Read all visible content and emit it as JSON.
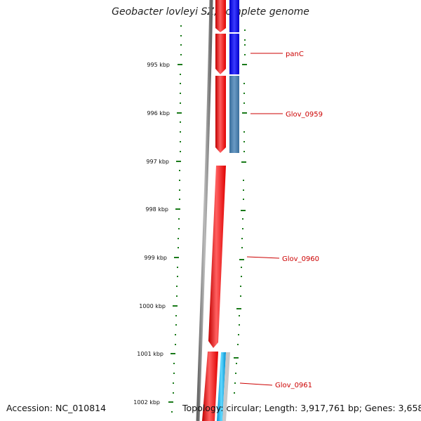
{
  "title": "Geobacter lovleyi SZ, complete genome",
  "footer": {
    "accession": "Accession: NC_010814",
    "summary": "Topology: circular; Length: 3,917,761 bp; Genes: 3,658"
  },
  "ticks": [
    "995 kbp",
    "996 kbp",
    "997 kbp",
    "998 kbp",
    "999 kbp",
    "1000 kbp",
    "1001 kbp",
    "1002 kbp"
  ],
  "genes": [
    "panC",
    "Glov_0959",
    "Glov_0960",
    "Glov_0961"
  ],
  "colors": {
    "gene_red": "#ff0000",
    "cds_blue": "#0000ee",
    "cds_steel": "#4682b4",
    "cds_cyan": "#00bfff",
    "backbone": "#808080",
    "tick_green": "#1a7a1a",
    "label_red": "#cc0000"
  }
}
